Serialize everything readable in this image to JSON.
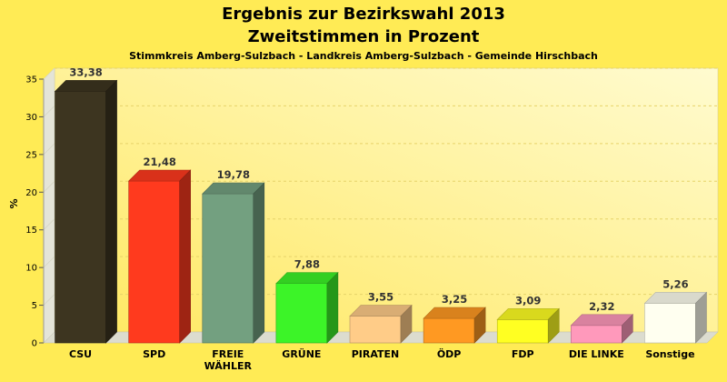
{
  "chart_data": {
    "type": "bar",
    "title": "Ergebnis zur Bezirkswahl 2013",
    "subtitle_line": "Zweitstimmen in Prozent",
    "subtitle": "Stimmkreis Amberg-Sulzbach - Landkreis Amberg-Sulzbach - Gemeinde Hirschbach",
    "ylabel": "%",
    "xlabel": "",
    "ylim": [
      0,
      35
    ],
    "yticks": [
      0,
      5,
      10,
      15,
      20,
      25,
      30,
      35
    ],
    "grid": true,
    "categories": [
      [
        "CSU"
      ],
      [
        "SPD"
      ],
      [
        "FREIE",
        "WÄHLER"
      ],
      [
        "GRÜNE"
      ],
      [
        "PIRATEN"
      ],
      [
        "ÖDP"
      ],
      [
        "FDP"
      ],
      [
        "DIE LINKE"
      ],
      [
        "Sonstige"
      ]
    ],
    "values": [
      33.38,
      21.48,
      19.78,
      7.88,
      3.55,
      3.25,
      3.09,
      2.32,
      5.26
    ],
    "value_labels": [
      "33,38",
      "21,48",
      "19,78",
      "7,88",
      "3,55",
      "3,25",
      "3,09",
      "2,32",
      "5,26"
    ],
    "colors": [
      "#3d3520",
      "#ff3a1e",
      "#73a080",
      "#3cf428",
      "#ffcc88",
      "#ff9922",
      "#ffff22",
      "#ff99bb",
      "#fffff0"
    ]
  },
  "style": {
    "background": "#ffeb55",
    "plot_gradient_light": "#fffbd0",
    "plot_gradient_dark": "#ffe860",
    "wall_left": "#e4e4d8",
    "floor": "#dcdccf"
  }
}
